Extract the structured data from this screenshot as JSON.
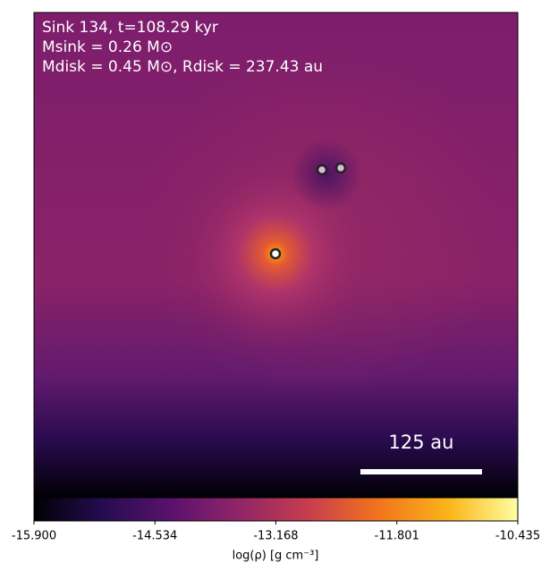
{
  "chart_data": {
    "type": "image",
    "annotations": [
      "Sink 134, t=108.29 kyr",
      "Msink = 0.26 M⊙",
      "Mdisk = 0.45 M⊙, Rdisk = 237.43 au"
    ],
    "scale_bar_label": "125 au",
    "colorbar": {
      "label": "log(ρ) [g cm⁻³]",
      "colormap": "inferno",
      "xlim": [
        -15.9,
        -10.435
      ],
      "xticks": [
        {
          "value": -15.9,
          "label": "-15.900"
        },
        {
          "value": -14.534,
          "label": "-14.534"
        },
        {
          "value": -13.168,
          "label": "-13.168"
        },
        {
          "value": -11.801,
          "label": "-11.801"
        },
        {
          "value": -10.435,
          "label": "-10.435"
        }
      ]
    }
  }
}
